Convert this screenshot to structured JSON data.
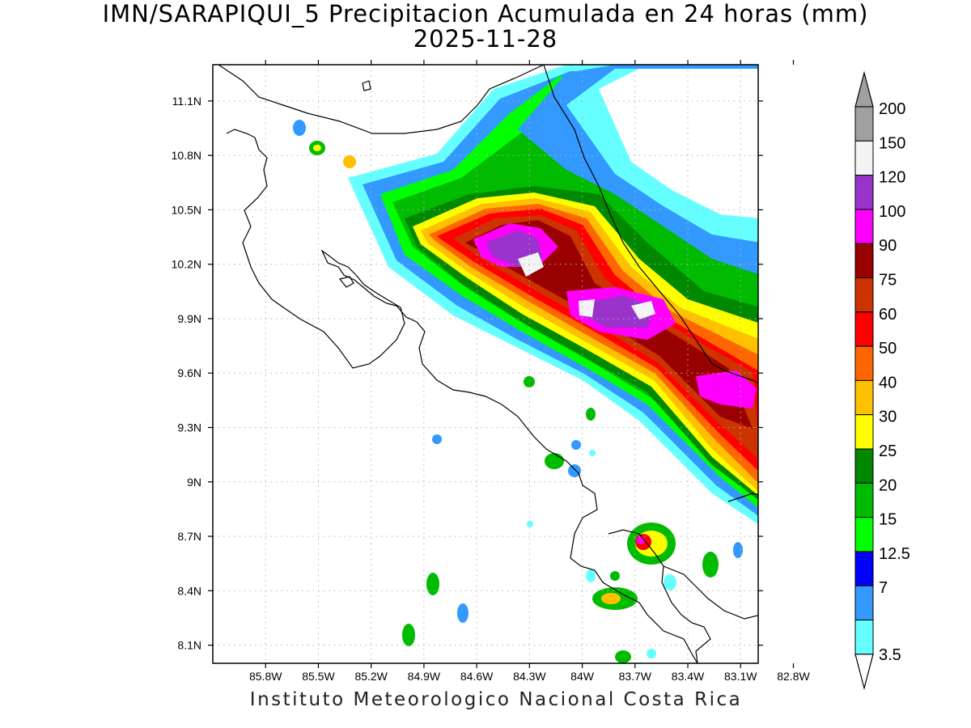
{
  "title": {
    "line1": "IMN/SARAPIQUI_5 Precipitacion Acumulada en 24 horas (mm)",
    "line2": "2025-11-28"
  },
  "footer": "Instituto Meteorologico Nacional Costa Rica",
  "map": {
    "lon_range": [
      -86.1,
      -83.0
    ],
    "lat_range": [
      8.0,
      11.3
    ],
    "lon_ticks": [
      {
        "value": -85.8,
        "label": "85.8W"
      },
      {
        "value": -85.5,
        "label": "85.5W"
      },
      {
        "value": -85.2,
        "label": "85.2W"
      },
      {
        "value": -84.9,
        "label": "84.9W"
      },
      {
        "value": -84.6,
        "label": "84.6W"
      },
      {
        "value": -84.3,
        "label": "84.3W"
      },
      {
        "value": -84.0,
        "label": "84W"
      },
      {
        "value": -83.7,
        "label": "83.7W"
      },
      {
        "value": -83.4,
        "label": "83.4W"
      },
      {
        "value": -83.1,
        "label": "83.1W"
      },
      {
        "value": -82.8,
        "label": "82.8W"
      }
    ],
    "lat_ticks": [
      {
        "value": 11.1,
        "label": "11.1N"
      },
      {
        "value": 10.8,
        "label": "10.8N"
      },
      {
        "value": 10.5,
        "label": "10.5N"
      },
      {
        "value": 10.2,
        "label": "10.2N"
      },
      {
        "value": 9.9,
        "label": "9.9N"
      },
      {
        "value": 9.6,
        "label": "9.6N"
      },
      {
        "value": 9.3,
        "label": "9.3N"
      },
      {
        "value": 9.0,
        "label": "9N"
      },
      {
        "value": 8.7,
        "label": "8.7N"
      },
      {
        "value": 8.4,
        "label": "8.4N"
      },
      {
        "value": 8.1,
        "label": "8.1N"
      }
    ],
    "grid": true
  },
  "legend": {
    "levels": [
      {
        "label": "200",
        "color": "#a0a0a0"
      },
      {
        "label": "150",
        "color": "#f4f4f4"
      },
      {
        "label": "120",
        "color": "#9933cc"
      },
      {
        "label": "100",
        "color": "#ff00ff"
      },
      {
        "label": "90",
        "color": "#990000"
      },
      {
        "label": "75",
        "color": "#cc3300"
      },
      {
        "label": "60",
        "color": "#ff0000"
      },
      {
        "label": "50",
        "color": "#ff6600"
      },
      {
        "label": "40",
        "color": "#ffc000"
      },
      {
        "label": "30",
        "color": "#ffff00"
      },
      {
        "label": "25",
        "color": "#008800"
      },
      {
        "label": "20",
        "color": "#00bb00"
      },
      {
        "label": "15",
        "color": "#00ff00"
      },
      {
        "label": "12.5",
        "color": "#0000ff"
      },
      {
        "label": "7",
        "color": "#3399ff"
      },
      {
        "label": "3.5",
        "color": "#66ffff"
      }
    ],
    "below_color": "#ffffff"
  }
}
